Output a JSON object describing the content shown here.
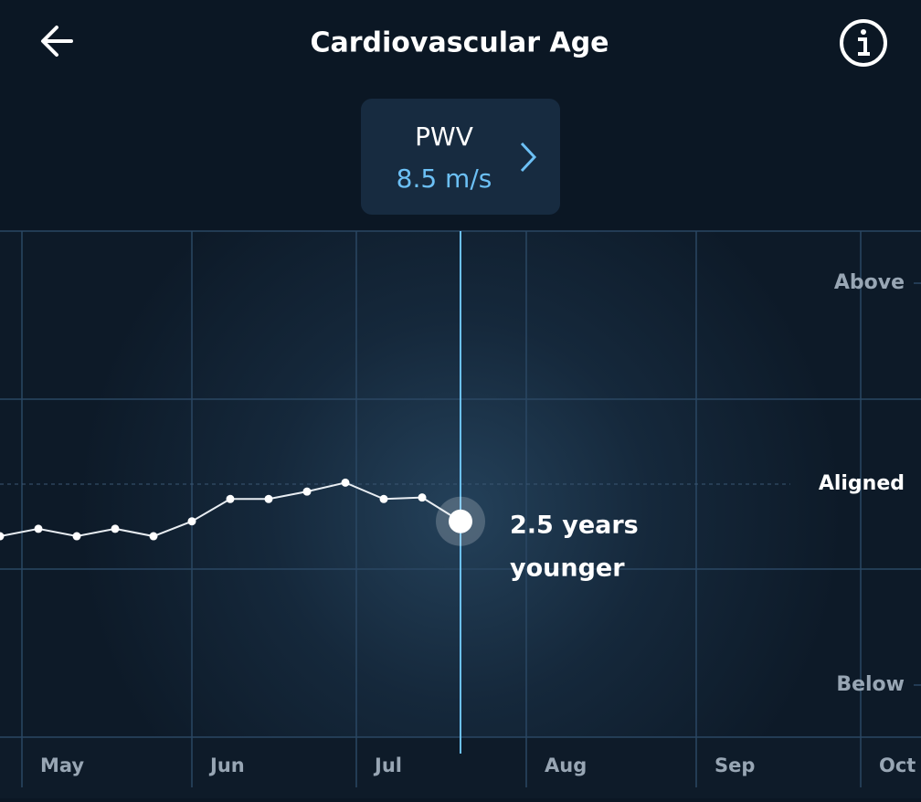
{
  "header": {
    "title": "Cardiovascular Age"
  },
  "metric": {
    "label": "PWV",
    "value": "8.5 m/s"
  },
  "chart_data": {
    "type": "line",
    "categories": [
      null,
      null,
      null,
      null,
      null,
      null,
      null,
      null,
      null,
      null,
      null,
      null,
      null
    ],
    "values": [
      -3.5,
      -3.0,
      -3.5,
      -3.0,
      -3.5,
      -2.5,
      -1.0,
      -1.0,
      -0.5,
      0.1,
      -1.0,
      -0.9,
      -2.5
    ],
    "color": "#e8edf2",
    "ylim": [
      -17,
      17
    ],
    "yticks": [
      {
        "value": 13.5,
        "label": "Above"
      },
      {
        "value": 0,
        "label": "Aligned"
      },
      {
        "value": -13.5,
        "label": "Below"
      }
    ],
    "months": [
      "May",
      "Jun",
      "Jul",
      "Aug",
      "Sep",
      "Oct"
    ],
    "annotation": [
      "2.5 years",
      "younger"
    ]
  }
}
